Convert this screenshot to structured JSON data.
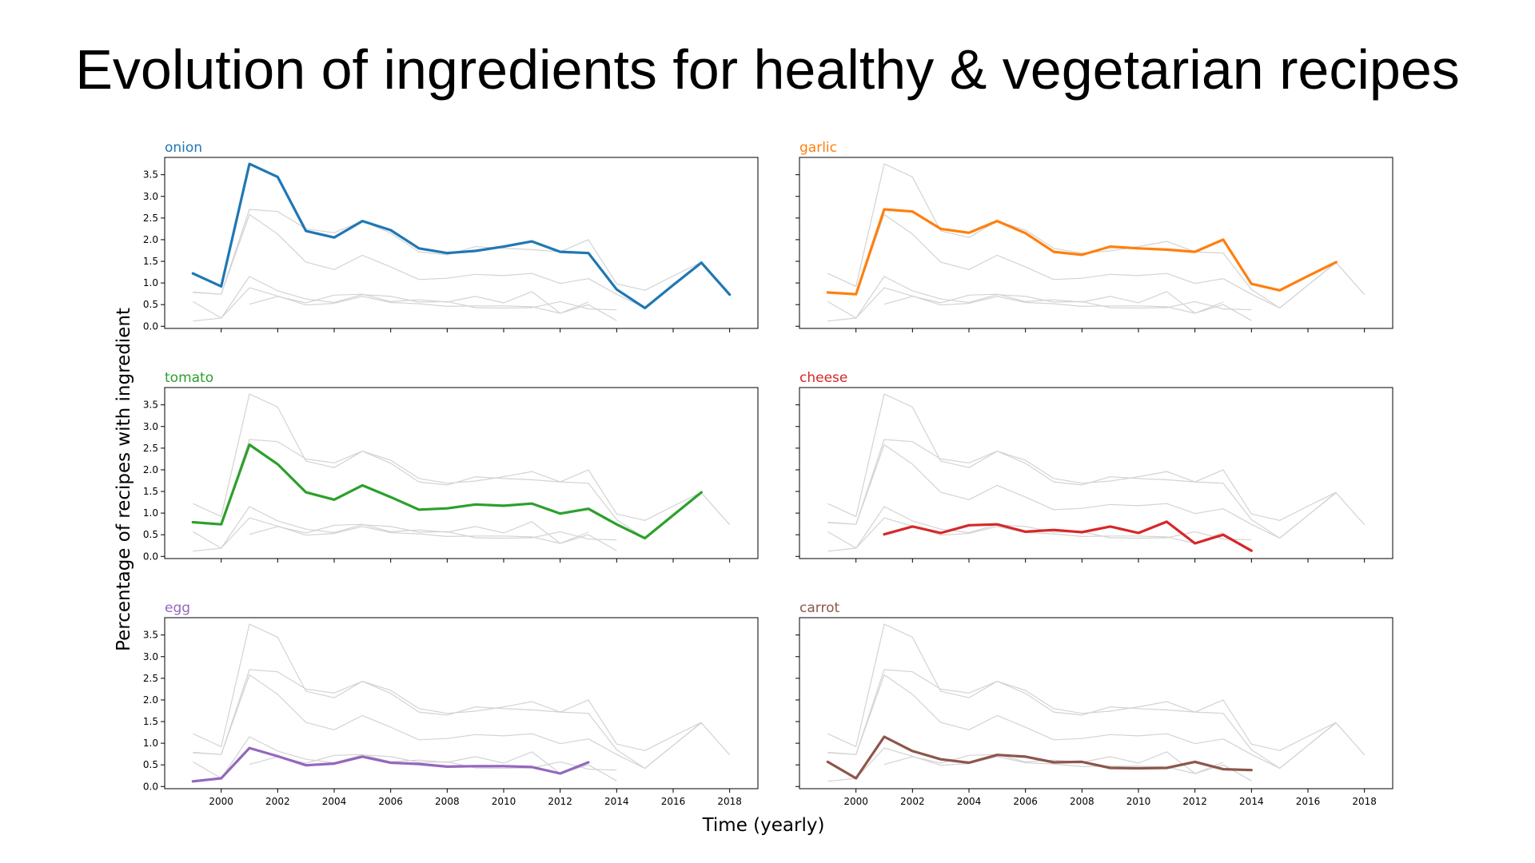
{
  "title": "Evolution of ingredients for healthy & vegetarian recipes",
  "chart_data": {
    "type": "line",
    "title": "Evolution of ingredients for healthy & vegetarian recipes",
    "xlabel": "Time (yearly)",
    "ylabel": "Percentage of recipes with ingredient",
    "xlim": [
      1998,
      2019
    ],
    "ylim": [
      -0.05,
      3.9
    ],
    "x_ticks": [
      2000,
      2002,
      2004,
      2006,
      2008,
      2010,
      2012,
      2014,
      2016,
      2018
    ],
    "y_ticks": [
      0.0,
      0.5,
      1.0,
      1.5,
      2.0,
      2.5,
      3.0,
      3.5
    ],
    "x_tick_labels": [
      "2000",
      "2002",
      "2004",
      "2006",
      "2008",
      "2010",
      "2012",
      "2014",
      "2016",
      "2018"
    ],
    "y_tick_labels": [
      "0.0",
      "0.5",
      "1.0",
      "1.5",
      "2.0",
      "2.5",
      "3.0",
      "3.5"
    ],
    "grid": false,
    "layout": "3x2 small multiples, each panel highlights one series over all others shown in light gray",
    "background_color": "#d3d3d3",
    "series": [
      {
        "name": "onion",
        "color": "#1f77b4",
        "x": [
          1999,
          2000,
          2001,
          2002,
          2003,
          2004,
          2005,
          2006,
          2007,
          2008,
          2009,
          2010,
          2011,
          2012,
          2013,
          2014,
          2015,
          2016,
          2017,
          2018
        ],
        "values": [
          1.22,
          0.92,
          3.75,
          3.45,
          2.2,
          2.05,
          2.43,
          2.22,
          1.8,
          1.69,
          1.74,
          1.84,
          1.96,
          1.72,
          1.69,
          0.85,
          0.42,
          0.95,
          1.47,
          0.73
        ]
      },
      {
        "name": "garlic",
        "color": "#ff7f0e",
        "x": [
          1999,
          2000,
          2001,
          2002,
          2003,
          2004,
          2005,
          2006,
          2007,
          2008,
          2009,
          2010,
          2011,
          2012,
          2013,
          2014,
          2015,
          2016,
          2017
        ],
        "values": [
          0.78,
          0.74,
          2.7,
          2.65,
          2.25,
          2.16,
          2.43,
          2.15,
          1.72,
          1.65,
          1.84,
          1.8,
          1.77,
          1.72,
          2.0,
          0.98,
          0.83,
          1.16,
          1.48
        ]
      },
      {
        "name": "tomato",
        "color": "#2ca02c",
        "x": [
          1999,
          2000,
          2001,
          2002,
          2003,
          2004,
          2005,
          2006,
          2007,
          2008,
          2009,
          2010,
          2011,
          2012,
          2013,
          2014,
          2015,
          2016,
          2017
        ],
        "values": [
          0.79,
          0.74,
          2.58,
          2.13,
          1.48,
          1.31,
          1.64,
          1.37,
          1.08,
          1.11,
          1.2,
          1.17,
          1.22,
          0.99,
          1.1,
          0.74,
          0.42,
          0.95,
          1.48
        ]
      },
      {
        "name": "cheese",
        "color": "#d62728",
        "x": [
          2001,
          2002,
          2003,
          2004,
          2005,
          2006,
          2007,
          2008,
          2009,
          2010,
          2011,
          2012,
          2013,
          2014
        ],
        "values": [
          0.51,
          0.69,
          0.54,
          0.72,
          0.74,
          0.57,
          0.61,
          0.56,
          0.69,
          0.54,
          0.8,
          0.3,
          0.5,
          0.13
        ]
      },
      {
        "name": "egg",
        "color": "#9467bd",
        "x": [
          1999,
          2000,
          2001,
          2002,
          2003,
          2004,
          2005,
          2006,
          2007,
          2008,
          2009,
          2010,
          2011,
          2012,
          2013
        ],
        "values": [
          0.12,
          0.19,
          0.89,
          0.7,
          0.49,
          0.53,
          0.69,
          0.55,
          0.52,
          0.46,
          0.47,
          0.47,
          0.45,
          0.3,
          0.56
        ]
      },
      {
        "name": "carrot",
        "color": "#8c564b",
        "x": [
          1999,
          2000,
          2001,
          2002,
          2003,
          2004,
          2005,
          2006,
          2007,
          2008,
          2009,
          2010,
          2011,
          2012,
          2013,
          2014
        ],
        "values": [
          0.57,
          0.19,
          1.15,
          0.82,
          0.63,
          0.55,
          0.73,
          0.69,
          0.56,
          0.57,
          0.43,
          0.42,
          0.43,
          0.57,
          0.4,
          0.38
        ]
      }
    ]
  }
}
